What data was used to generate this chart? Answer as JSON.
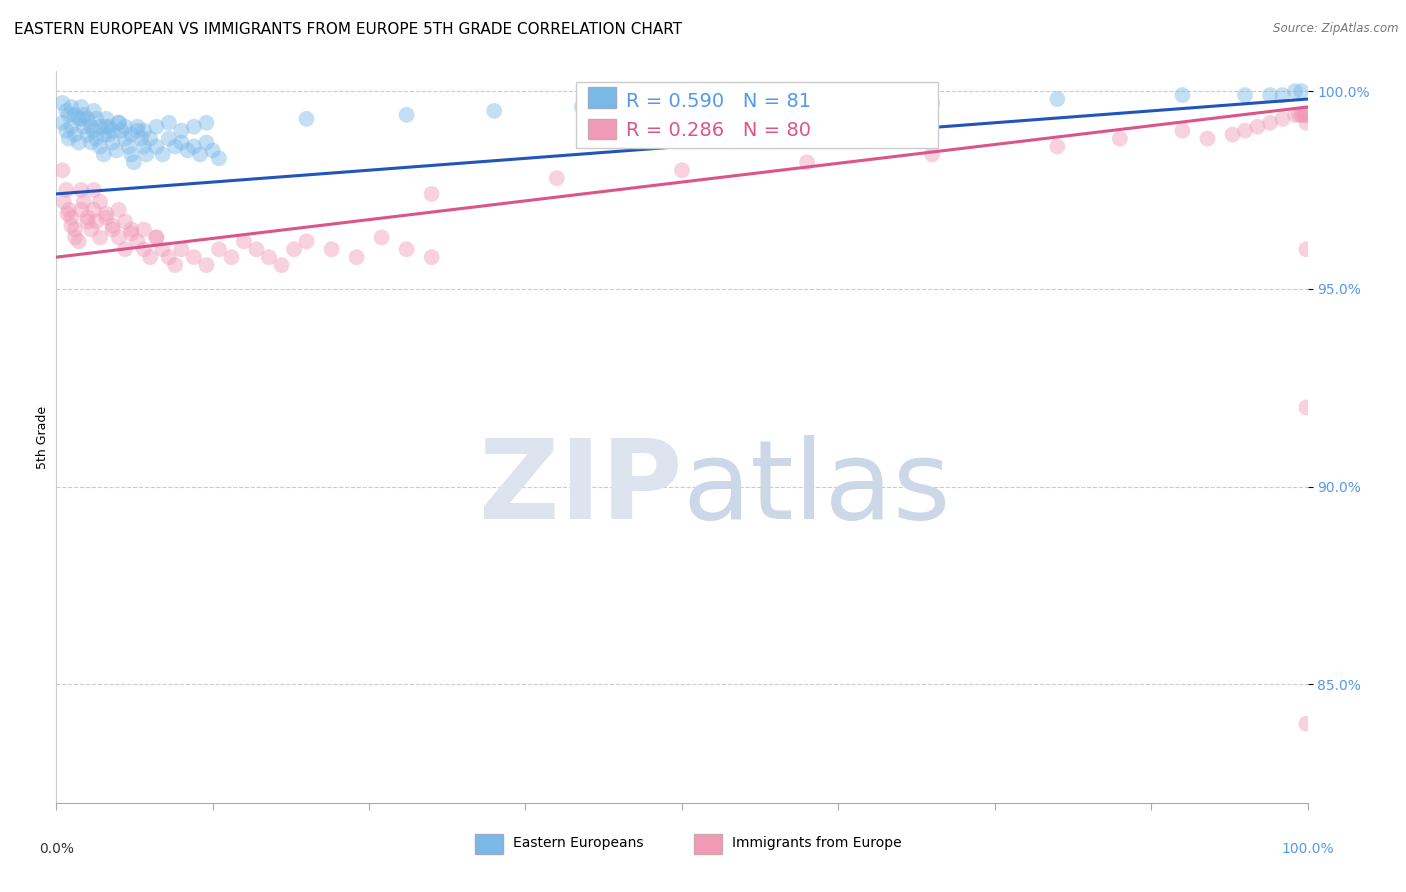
{
  "title": "EASTERN EUROPEAN VS IMMIGRANTS FROM EUROPE 5TH GRADE CORRELATION CHART",
  "source": "Source: ZipAtlas.com",
  "ylabel": "5th Grade",
  "xlim": [
    0.0,
    1.0
  ],
  "ylim": [
    0.82,
    1.005
  ],
  "yticks": [
    0.85,
    0.9,
    0.95,
    1.0
  ],
  "ytick_labels": [
    "85.0%",
    "90.0%",
    "95.0%",
    "100.0%"
  ],
  "blue_R": 0.59,
  "blue_N": 81,
  "pink_R": 0.286,
  "pink_N": 80,
  "blue_color": "#7ab8e8",
  "blue_line_color": "#2255bb",
  "pink_color": "#f09ab8",
  "pink_line_color": "#dd5588",
  "blue_line_y_start": 0.974,
  "blue_line_y_end": 0.998,
  "pink_line_y_start": 0.958,
  "pink_line_y_end": 0.996,
  "background_color": "#ffffff",
  "grid_color": "#cccccc",
  "tick_color_y": "#5599ee",
  "tick_color_x_left": "#333333",
  "tick_color_x_right": "#5599ee",
  "title_fontsize": 11,
  "axis_label_fontsize": 9,
  "tick_fontsize": 10,
  "legend_fontsize": 14,
  "scatter_size": 130,
  "scatter_alpha": 0.45,
  "line_width": 2.2,
  "blue_scatter_x": [
    0.005,
    0.008,
    0.01,
    0.012,
    0.015,
    0.018,
    0.02,
    0.022,
    0.025,
    0.028,
    0.03,
    0.032,
    0.035,
    0.038,
    0.04,
    0.042,
    0.045,
    0.048,
    0.05,
    0.052,
    0.055,
    0.058,
    0.06,
    0.062,
    0.065,
    0.068,
    0.07,
    0.072,
    0.075,
    0.08,
    0.085,
    0.09,
    0.095,
    0.1,
    0.105,
    0.11,
    0.115,
    0.12,
    0.125,
    0.13,
    0.005,
    0.008,
    0.01,
    0.012,
    0.015,
    0.018,
    0.02,
    0.022,
    0.025,
    0.028,
    0.03,
    0.032,
    0.035,
    0.038,
    0.04,
    0.042,
    0.045,
    0.05,
    0.055,
    0.06,
    0.065,
    0.07,
    0.08,
    0.09,
    0.1,
    0.11,
    0.12,
    0.2,
    0.28,
    0.35,
    0.42,
    0.5,
    0.6,
    0.7,
    0.8,
    0.9,
    0.95,
    0.97,
    0.98,
    0.99,
    0.995
  ],
  "blue_scatter_y": [
    0.992,
    0.99,
    0.988,
    0.991,
    0.989,
    0.987,
    0.993,
    0.991,
    0.989,
    0.987,
    0.99,
    0.988,
    0.986,
    0.984,
    0.991,
    0.989,
    0.987,
    0.985,
    0.992,
    0.99,
    0.988,
    0.986,
    0.984,
    0.982,
    0.99,
    0.988,
    0.986,
    0.984,
    0.988,
    0.986,
    0.984,
    0.988,
    0.986,
    0.987,
    0.985,
    0.986,
    0.984,
    0.987,
    0.985,
    0.983,
    0.997,
    0.995,
    0.994,
    0.996,
    0.994,
    0.993,
    0.996,
    0.994,
    0.993,
    0.991,
    0.995,
    0.993,
    0.991,
    0.989,
    0.993,
    0.991,
    0.99,
    0.992,
    0.991,
    0.989,
    0.991,
    0.99,
    0.991,
    0.992,
    0.99,
    0.991,
    0.992,
    0.993,
    0.994,
    0.995,
    0.996,
    0.996,
    0.997,
    0.997,
    0.998,
    0.999,
    0.999,
    0.999,
    0.999,
    1.0,
    1.0
  ],
  "pink_scatter_x": [
    0.005,
    0.008,
    0.01,
    0.012,
    0.015,
    0.018,
    0.02,
    0.022,
    0.025,
    0.028,
    0.03,
    0.032,
    0.035,
    0.04,
    0.045,
    0.05,
    0.055,
    0.06,
    0.065,
    0.07,
    0.075,
    0.08,
    0.085,
    0.09,
    0.095,
    0.1,
    0.11,
    0.12,
    0.13,
    0.14,
    0.15,
    0.16,
    0.17,
    0.18,
    0.19,
    0.2,
    0.22,
    0.24,
    0.26,
    0.28,
    0.3,
    0.006,
    0.009,
    0.012,
    0.015,
    0.02,
    0.025,
    0.03,
    0.035,
    0.04,
    0.045,
    0.05,
    0.055,
    0.06,
    0.07,
    0.08,
    0.3,
    0.4,
    0.5,
    0.6,
    0.7,
    0.8,
    0.85,
    0.9,
    0.92,
    0.94,
    0.95,
    0.96,
    0.97,
    0.98,
    0.99,
    0.993,
    0.995,
    0.997,
    0.998,
    0.999,
    0.999,
    0.999,
    0.999,
    0.999
  ],
  "pink_scatter_y": [
    0.98,
    0.975,
    0.97,
    0.968,
    0.965,
    0.962,
    0.975,
    0.972,
    0.968,
    0.965,
    0.97,
    0.967,
    0.963,
    0.968,
    0.965,
    0.963,
    0.96,
    0.965,
    0.962,
    0.96,
    0.958,
    0.963,
    0.96,
    0.958,
    0.956,
    0.96,
    0.958,
    0.956,
    0.96,
    0.958,
    0.962,
    0.96,
    0.958,
    0.956,
    0.96,
    0.962,
    0.96,
    0.958,
    0.963,
    0.96,
    0.958,
    0.972,
    0.969,
    0.966,
    0.963,
    0.97,
    0.967,
    0.975,
    0.972,
    0.969,
    0.966,
    0.97,
    0.967,
    0.964,
    0.965,
    0.963,
    0.974,
    0.978,
    0.98,
    0.982,
    0.984,
    0.986,
    0.988,
    0.99,
    0.988,
    0.989,
    0.99,
    0.991,
    0.992,
    0.993,
    0.994,
    0.994,
    0.994,
    0.994,
    0.994,
    0.994,
    0.96,
    0.92,
    0.992,
    0.84
  ]
}
